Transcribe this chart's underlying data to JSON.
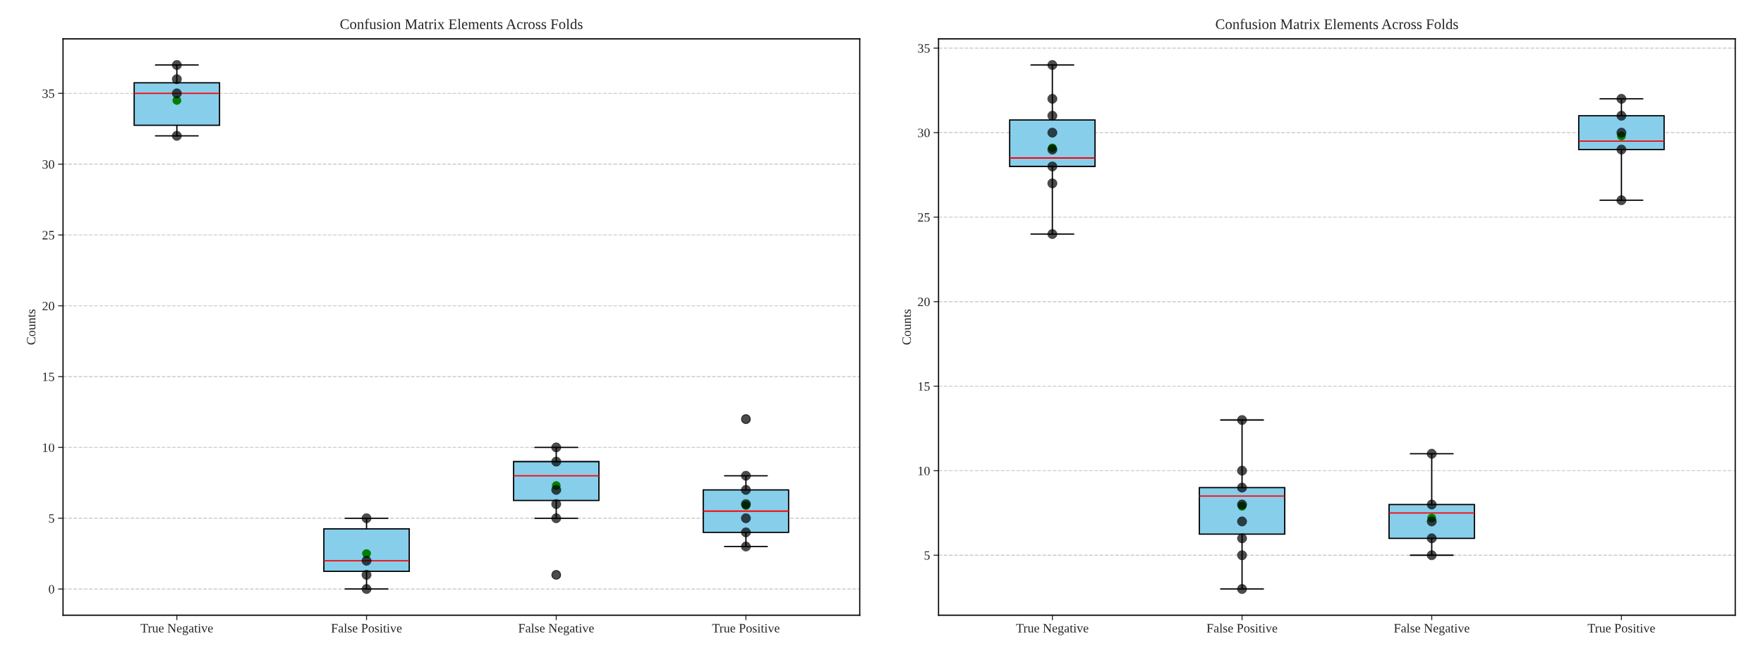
{
  "chart_data": [
    {
      "type": "box",
      "title": "Confusion Matrix Elements Across Folds",
      "ylabel": "Counts",
      "categories": [
        "True Negative",
        "False Positive",
        "False Negative",
        "True Positive"
      ],
      "color": "#87ceeb",
      "ylim": [
        -1.85,
        38.85
      ],
      "yticks": [
        0,
        5,
        10,
        15,
        20,
        25,
        30,
        35
      ],
      "grid": "y",
      "legend": false,
      "boxes": [
        {
          "low": 32,
          "q1": 32.75,
          "median": 35,
          "q3": 35.75,
          "high": 37,
          "mean": 34.5
        },
        {
          "low": 0,
          "q1": 1.25,
          "median": 2,
          "q3": 4.25,
          "high": 5,
          "mean": 2.5
        },
        {
          "low": 5,
          "q1": 6.25,
          "median": 8,
          "q3": 9,
          "high": 10,
          "mean": 7.3,
          "outliers": [
            1
          ]
        },
        {
          "low": 3,
          "q1": 4,
          "median": 5.5,
          "q3": 7,
          "high": 8,
          "mean": 5.9,
          "outliers": [
            12
          ]
        }
      ],
      "series": [
        {
          "type": "scatter",
          "color": "#000000",
          "marker": "circle",
          "x": [
            "True Negative",
            "True Negative",
            "True Negative",
            "True Negative",
            "False Positive",
            "False Positive",
            "False Positive",
            "False Positive",
            "False Negative",
            "False Negative",
            "False Negative",
            "False Negative",
            "False Negative",
            "True Positive",
            "True Positive",
            "True Positive",
            "True Positive",
            "True Positive",
            "True Positive"
          ],
          "values": [
            37,
            36,
            35,
            32,
            5,
            2,
            1,
            0,
            10,
            9,
            7,
            6,
            5,
            8,
            7,
            6,
            5,
            4,
            3
          ]
        }
      ]
    },
    {
      "type": "box",
      "title": "Confusion Matrix Elements Across Folds",
      "ylabel": "Counts",
      "categories": [
        "True Negative",
        "False Positive",
        "False Negative",
        "True Positive"
      ],
      "color": "#87ceeb",
      "ylim": [
        1.45,
        35.55
      ],
      "yticks": [
        5,
        10,
        15,
        20,
        25,
        30,
        35
      ],
      "grid": "y",
      "legend": false,
      "boxes": [
        {
          "low": 24,
          "q1": 28,
          "median": 28.5,
          "q3": 30.75,
          "high": 34,
          "mean": 29.1
        },
        {
          "low": 3,
          "q1": 6.25,
          "median": 8.5,
          "q3": 9,
          "high": 13,
          "mean": 7.9
        },
        {
          "low": 5,
          "q1": 6,
          "median": 7.5,
          "q3": 8,
          "high": 11,
          "mean": 7.2
        },
        {
          "low": 26,
          "q1": 29,
          "median": 29.5,
          "q3": 31,
          "high": 32,
          "mean": 29.8
        }
      ],
      "series": [
        {
          "type": "scatter",
          "color": "#000000",
          "marker": "circle",
          "x": [
            "True Negative",
            "True Negative",
            "True Negative",
            "True Negative",
            "True Negative",
            "True Negative",
            "True Negative",
            "True Negative",
            "False Positive",
            "False Positive",
            "False Positive",
            "False Positive",
            "False Positive",
            "False Positive",
            "False Positive",
            "False Positive",
            "False Negative",
            "False Negative",
            "False Negative",
            "False Negative",
            "False Negative",
            "True Positive",
            "True Positive",
            "True Positive",
            "True Positive",
            "True Positive"
          ],
          "values": [
            34,
            32,
            31,
            30,
            29,
            28,
            27,
            24,
            13,
            10,
            9,
            8,
            7,
            6,
            5,
            3,
            11,
            8,
            7,
            6,
            5,
            32,
            31,
            30,
            29,
            26
          ]
        }
      ]
    }
  ]
}
